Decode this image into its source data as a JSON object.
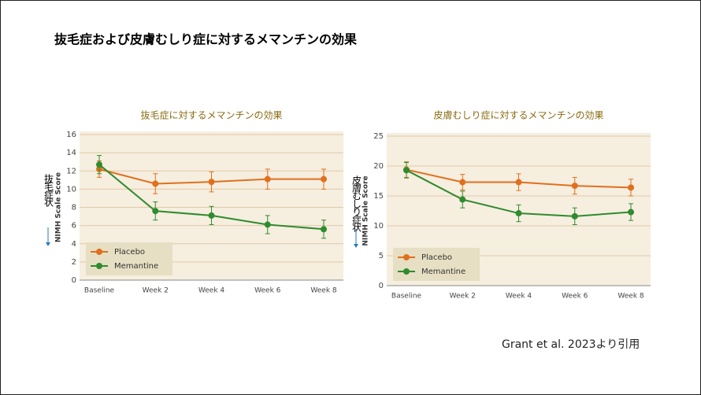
{
  "title": "抜毛症および皮膚むしり症に対するメマンチンの効果",
  "citation": "Grant et al. 2023より引用",
  "chart_data": [
    {
      "type": "line",
      "title": "抜毛症に対するメマンチンの効果",
      "ylabel": "NIMH Scale Score",
      "annotation": "抜毛症状",
      "categories": [
        "Baseline",
        "Week 2",
        "Week 4",
        "Week 6",
        "Week 8"
      ],
      "series": [
        {
          "name": "Placebo",
          "color": "#e0701e",
          "values": [
            12.2,
            10.6,
            10.8,
            11.1,
            11.1
          ],
          "errors": [
            0.9,
            1.1,
            1.1,
            1.1,
            1.1
          ]
        },
        {
          "name": "Memantine",
          "color": "#2e8b2e",
          "values": [
            12.7,
            7.6,
            7.1,
            6.1,
            5.6
          ],
          "errors": [
            1.0,
            1.0,
            1.0,
            1.0,
            1.0
          ]
        }
      ],
      "ylim": [
        0,
        16
      ],
      "yticks": [
        0,
        2,
        4,
        6,
        8,
        10,
        12,
        14,
        16
      ],
      "grid": true,
      "legend": "lower left"
    },
    {
      "type": "line",
      "title": "皮膚むしり症に対するメマンチンの効果",
      "ylabel": "NIMH Scale Score",
      "annotation": "皮膚むしり症状",
      "categories": [
        "Baseline",
        "Week 2",
        "Week 4",
        "Week 6",
        "Week 8"
      ],
      "series": [
        {
          "name": "Placebo",
          "color": "#e0701e",
          "values": [
            19.4,
            17.3,
            17.3,
            16.7,
            16.4
          ],
          "errors": [
            1.3,
            1.3,
            1.4,
            1.4,
            1.4
          ]
        },
        {
          "name": "Memantine",
          "color": "#2e8b2e",
          "values": [
            19.3,
            14.4,
            12.1,
            11.6,
            12.3
          ],
          "errors": [
            1.3,
            1.4,
            1.4,
            1.4,
            1.4
          ]
        }
      ],
      "ylim": [
        0,
        25
      ],
      "yticks": [
        0,
        5,
        10,
        15,
        20,
        25
      ],
      "grid": true,
      "legend": "lower left"
    }
  ]
}
